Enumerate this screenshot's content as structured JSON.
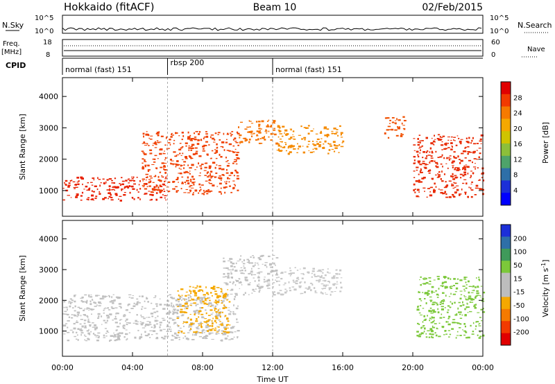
{
  "header": {
    "station": "Hokkaido (fitACF)",
    "beam": "Beam 10",
    "date": "02/Feb/2015"
  },
  "noise_panel": {
    "left_label": "N.Sky",
    "right_label": "N.Search",
    "left_ticks": [
      "10^5",
      "10^0"
    ],
    "right_ticks": [
      "10^5",
      "10^0"
    ]
  },
  "freq_panel": {
    "left_label_1": "Freq.",
    "left_label_2": "[MHz]",
    "right_label": "Nave",
    "left_ticks": [
      "18",
      "8"
    ],
    "right_ticks": [
      "60",
      "0"
    ]
  },
  "cpid": {
    "label": "CPID",
    "segments": [
      {
        "start_h": 0,
        "end_h": 6,
        "text": "normal (fast) 151"
      },
      {
        "start_h": 6,
        "end_h": 12,
        "text": "rbsp 200"
      },
      {
        "start_h": 12,
        "end_h": 24,
        "text": "normal (fast) 151"
      }
    ]
  },
  "chart_data": [
    {
      "type": "heatmap",
      "name": "power",
      "ylabel": "Slant Range [km]",
      "ylim": [
        180,
        4600
      ],
      "xlim_hours": [
        0,
        24
      ],
      "yticks": [
        "1000",
        "2000",
        "3000",
        "4000"
      ],
      "colorbar": {
        "label": "Power [dB]",
        "ticks": [
          "28",
          "24",
          "20",
          "16",
          "12",
          "8",
          "4"
        ],
        "colors": [
          "#e00000",
          "#f23a00",
          "#f67a00",
          "#f5a800",
          "#cfc400",
          "#8cbf3a",
          "#4ea36a",
          "#2e6fa8",
          "#1c2fd8",
          "#0000ff"
        ]
      },
      "echo_regions": [
        {
          "t0": 0.0,
          "t1": 6.0,
          "r0": 700,
          "r1": 1450,
          "color": "#e82000"
        },
        {
          "t0": 4.5,
          "t1": 10.0,
          "r0": 900,
          "r1": 2900,
          "color": "#f04000"
        },
        {
          "t0": 10.0,
          "t1": 12.2,
          "r0": 2500,
          "r1": 3300,
          "color": "#f57000"
        },
        {
          "t0": 12.2,
          "t1": 16.0,
          "r0": 2200,
          "r1": 3100,
          "color": "#f58a00"
        },
        {
          "t0": 18.3,
          "t1": 19.5,
          "r0": 2700,
          "r1": 3400,
          "color": "#f05000"
        },
        {
          "t0": 20.0,
          "t1": 24.0,
          "r0": 800,
          "r1": 2800,
          "color": "#e82800"
        }
      ]
    },
    {
      "type": "heatmap",
      "name": "velocity",
      "ylabel": "Slant Range [km]",
      "ylim": [
        180,
        4600
      ],
      "xlim_hours": [
        0,
        24
      ],
      "yticks": [
        "1000",
        "2000",
        "3000",
        "4000"
      ],
      "colorbar": {
        "label": "Velocity [m s^-1]",
        "ticks": [
          "200",
          "100",
          "50",
          "15",
          "-15",
          "-50",
          "-100",
          "-200"
        ],
        "colors": [
          "#1c2fd8",
          "#2e6fa8",
          "#3f9a5a",
          "#7cc83a",
          "#bdbdbd",
          "#bdbdbd",
          "#f5a800",
          "#f57a00",
          "#f23a00",
          "#e00000"
        ]
      },
      "echo_regions": [
        {
          "t0": 0.0,
          "t1": 10.0,
          "r0": 700,
          "r1": 2200,
          "color": "#c0c0c0"
        },
        {
          "t0": 9.0,
          "t1": 12.2,
          "r0": 2200,
          "r1": 3500,
          "color": "#c0c0c0"
        },
        {
          "t0": 12.2,
          "t1": 16.0,
          "r0": 2200,
          "r1": 3100,
          "color": "#c8c8c8"
        },
        {
          "t0": 20.2,
          "t1": 24.0,
          "r0": 800,
          "r1": 2800,
          "color": "#7cc83a"
        },
        {
          "t0": 6.5,
          "t1": 9.5,
          "r0": 900,
          "r1": 2500,
          "color": "#f5a800"
        }
      ]
    }
  ],
  "x_axis": {
    "label": "Time UT",
    "ticks": [
      "00:00",
      "04:00",
      "08:00",
      "12:00",
      "16:00",
      "20:00",
      "00:00"
    ]
  }
}
